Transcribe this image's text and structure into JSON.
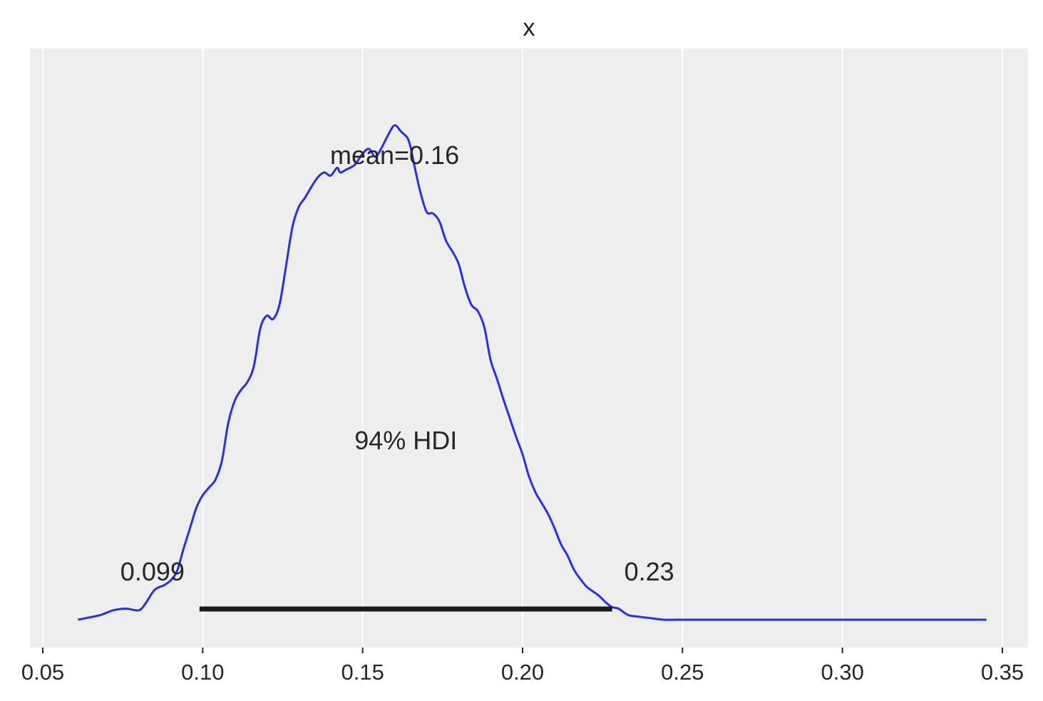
{
  "chart_data": {
    "type": "line",
    "title": "x",
    "xlabel": "",
    "ylabel": "",
    "xlim": [
      0.05,
      0.35
    ],
    "ylim": [
      0,
      17.3
    ],
    "grid": "vertical",
    "x_ticks": [
      0.05,
      0.1,
      0.15,
      0.2,
      0.25,
      0.3,
      0.35
    ],
    "x_tick_labels": [
      "0.05",
      "0.10",
      "0.15",
      "0.20",
      "0.25",
      "0.30",
      "0.35"
    ],
    "show_y_axis": false,
    "series": [
      {
        "color": "#2a2eec",
        "x": [
          0.061,
          0.068,
          0.072,
          0.076,
          0.08,
          0.082,
          0.085,
          0.088,
          0.09,
          0.092,
          0.094,
          0.096,
          0.098,
          0.1,
          0.102,
          0.104,
          0.106,
          0.108,
          0.11,
          0.112,
          0.114,
          0.116,
          0.118,
          0.12,
          0.122,
          0.124,
          0.126,
          0.128,
          0.13,
          0.132,
          0.134,
          0.136,
          0.138,
          0.14,
          0.142,
          0.143,
          0.145,
          0.147,
          0.148,
          0.15,
          0.152,
          0.154,
          0.156,
          0.158,
          0.16,
          0.162,
          0.164,
          0.165,
          0.166,
          0.168,
          0.17,
          0.172,
          0.174,
          0.176,
          0.178,
          0.18,
          0.182,
          0.184,
          0.186,
          0.188,
          0.19,
          0.192,
          0.194,
          0.196,
          0.198,
          0.2,
          0.202,
          0.204,
          0.206,
          0.208,
          0.21,
          0.212,
          0.214,
          0.216,
          0.218,
          0.22,
          0.222,
          0.224,
          0.226,
          0.228,
          0.23,
          0.233,
          0.236,
          0.24,
          0.244,
          0.248,
          0.252,
          0.256,
          0.26,
          0.265,
          0.27,
          0.275,
          0.28,
          0.285,
          0.29,
          0.3,
          0.31,
          0.32,
          0.33,
          0.345
        ],
        "y": [
          0.0,
          0.15,
          0.3,
          0.35,
          0.3,
          0.5,
          0.95,
          1.1,
          1.25,
          1.55,
          2.25,
          2.9,
          3.55,
          3.95,
          4.2,
          4.45,
          5.05,
          6.25,
          6.95,
          7.3,
          7.55,
          8.05,
          9.25,
          9.65,
          9.55,
          10.0,
          11.2,
          12.45,
          13.1,
          13.4,
          13.75,
          14.05,
          14.2,
          14.1,
          14.35,
          14.2,
          14.3,
          14.4,
          14.5,
          14.8,
          14.95,
          14.7,
          15.0,
          15.4,
          15.7,
          15.5,
          15.3,
          15.0,
          14.5,
          13.6,
          12.95,
          12.9,
          12.65,
          12.05,
          11.7,
          11.3,
          10.55,
          10.0,
          9.8,
          9.3,
          8.25,
          7.65,
          7.0,
          6.4,
          5.8,
          5.25,
          4.55,
          4.05,
          3.7,
          3.35,
          2.9,
          2.4,
          2.05,
          1.6,
          1.3,
          1.05,
          0.9,
          0.75,
          0.55,
          0.4,
          0.35,
          0.15,
          0.1,
          0.05,
          0.0,
          0.0,
          0.0,
          0.0,
          0.0,
          0.0,
          0.0,
          0.0,
          0.0,
          0.0,
          0.0,
          0.0,
          0.0,
          0.0,
          0.0,
          0.0
        ]
      }
    ],
    "hdi": {
      "low": 0.099,
      "high": 0.228,
      "low_label": "0.099",
      "high_label": "0.23",
      "label": "94% HDI"
    },
    "mean": {
      "value": 0.16,
      "label": "mean=0.16"
    },
    "colors": {
      "background": "#eeeeee",
      "grid": "#ffffff",
      "line": "#2a2eec",
      "hdi": "#1a1a1a",
      "text": "#262626"
    }
  }
}
